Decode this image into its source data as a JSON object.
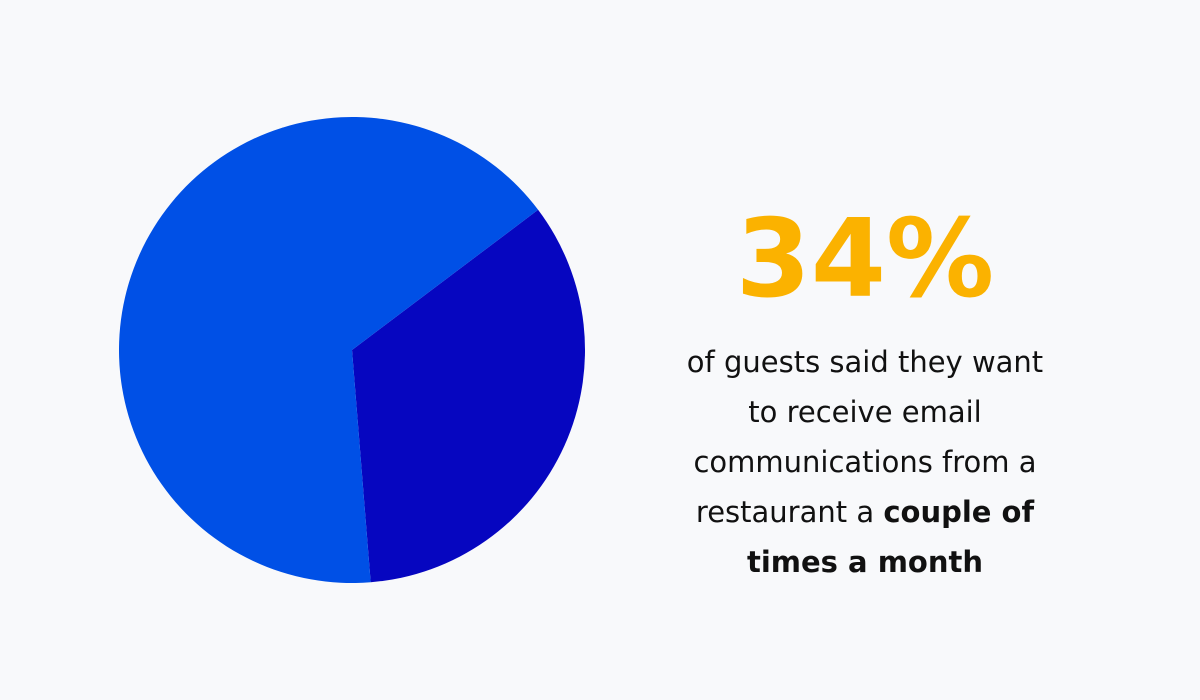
{
  "chart_data": {
    "type": "pie",
    "values": [
      34,
      66
    ],
    "value_labels": [
      "34%",
      null
    ],
    "colors": [
      "#0606c0",
      "#0050e6"
    ],
    "label_color": "#fbb200",
    "caption": "of guests said they want to receive email communications from a restaurant a",
    "caption_emphasis": "couple of times a month"
  }
}
